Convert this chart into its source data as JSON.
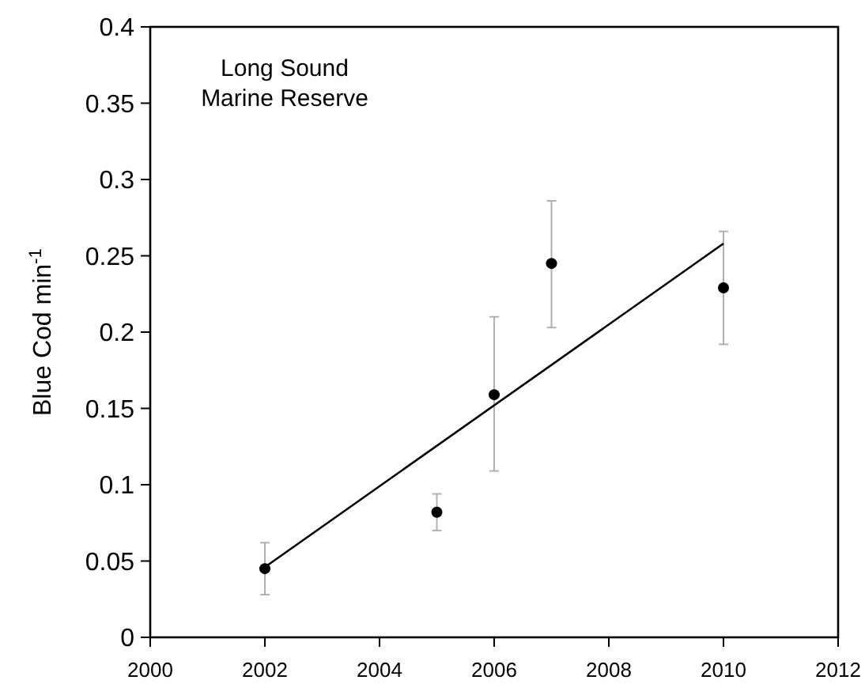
{
  "chart_data": {
    "type": "scatter",
    "ylabel": "Blue Cod min$^{-1}$",
    "annotations": [
      "Long Sound\nMarine Reserve"
    ],
    "xlim": [
      2000,
      2012
    ],
    "xticks": [
      2000,
      2002,
      2004,
      2006,
      2008,
      2010,
      2012
    ],
    "ylim": [
      0,
      0.4
    ],
    "yticks": [
      0,
      0.05,
      0.1,
      0.15,
      0.2,
      0.25,
      0.3,
      0.35,
      0.4
    ],
    "grid": false,
    "series": [
      {
        "marker": "circle",
        "color": "#000000",
        "x": [
          2002,
          2005,
          2006,
          2007,
          2010
        ],
        "values": [
          0.045,
          0.082,
          0.159,
          0.245,
          0.229
        ],
        "errors": [
          [
            0.028,
            0.062
          ],
          [
            0.07,
            0.094
          ],
          [
            0.109,
            0.21
          ],
          [
            0.203,
            0.286
          ],
          [
            0.192,
            0.266
          ]
        ]
      },
      {
        "type": "line",
        "color": "#000000",
        "x": [
          2002,
          2010
        ],
        "values": [
          0.046,
          0.258
        ],
        "line_style": "solid"
      }
    ]
  }
}
